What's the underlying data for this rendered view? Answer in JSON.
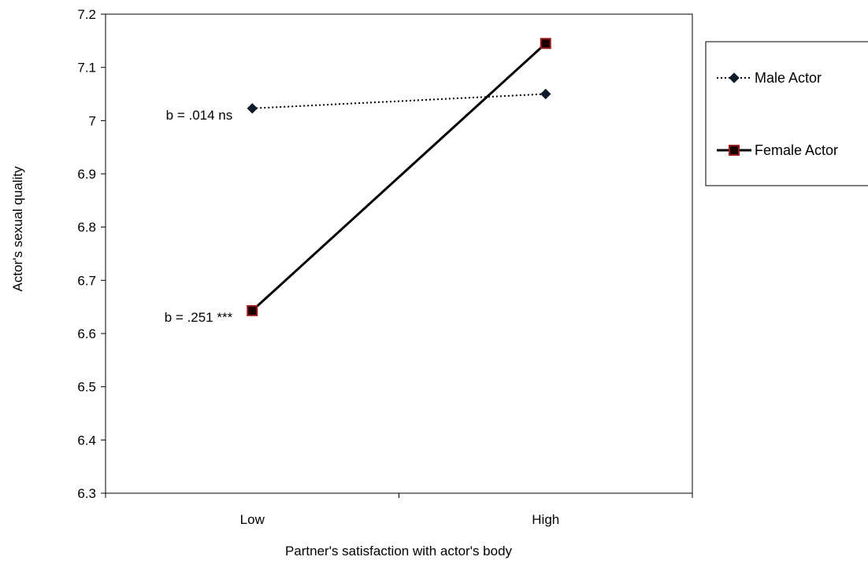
{
  "chart_data": {
    "type": "line",
    "title": "",
    "xlabel": "Partner's satisfaction with actor's body",
    "ylabel": "Actor's sexual quality",
    "categories": [
      "Low",
      "High"
    ],
    "ylim": [
      6.3,
      7.2
    ],
    "yticks": [
      6.3,
      6.4,
      6.5,
      6.6,
      6.7,
      6.8,
      6.9,
      7,
      7.1,
      7.2
    ],
    "ytick_labels": [
      "6.3",
      "6.4",
      "6.5",
      "6.6",
      "6.7",
      "6.8",
      "6.9",
      "7",
      "7.1",
      "7.2"
    ],
    "grid": false,
    "legend_position": "right",
    "series": [
      {
        "name": "Male Actor",
        "values": [
          7.023,
          7.05
        ],
        "style": "dotted",
        "marker": "diamond",
        "color": "#000000",
        "marker_color": "#0d1b2a"
      },
      {
        "name": "Female Actor",
        "values": [
          6.643,
          7.145
        ],
        "style": "solid",
        "marker": "square",
        "color": "#000000",
        "marker_color": "#1a0000",
        "marker_edge": "#9b1c1c"
      }
    ],
    "annotations": [
      {
        "text": "b = .014 ns",
        "series": "Male Actor",
        "category": "Low"
      },
      {
        "text": "b = .251 ***",
        "series": "Female Actor",
        "category": "Low"
      }
    ]
  }
}
